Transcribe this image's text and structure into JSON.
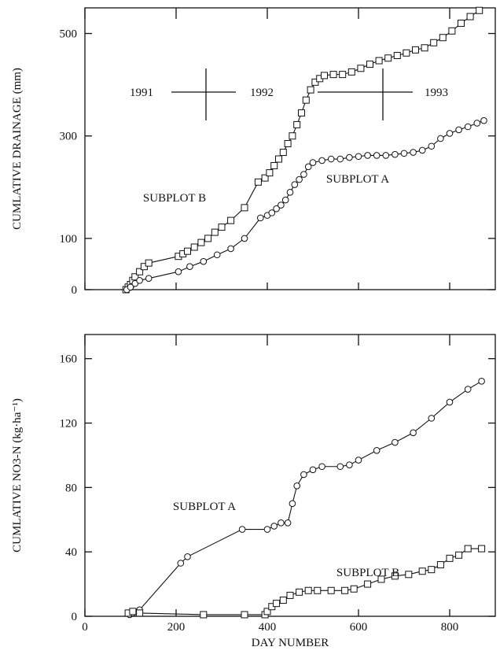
{
  "chart_data": [
    {
      "type": "line",
      "y_label": "CUMLATIVE DRAINAGE  (mm)",
      "annotations": [
        "1991",
        "1992",
        "1993"
      ],
      "xlim": [
        0,
        900
      ],
      "xticks": [
        0,
        200,
        400,
        600,
        800
      ],
      "xtick_labels": false,
      "ylim": [
        0,
        550
      ],
      "yticks": [
        0,
        100,
        300,
        500
      ],
      "series": [
        {
          "name": "SUBPLOT B",
          "marker": "square",
          "color": "#111111",
          "x": [
            90,
            95,
            100,
            105,
            110,
            120,
            130,
            140,
            205,
            215,
            225,
            240,
            255,
            270,
            285,
            300,
            320,
            350,
            380,
            395,
            405,
            415,
            425,
            435,
            445,
            455,
            465,
            475,
            485,
            495,
            505,
            515,
            525,
            545,
            565,
            585,
            605,
            625,
            645,
            665,
            685,
            705,
            725,
            745,
            765,
            785,
            805,
            825,
            845,
            865
          ],
          "values": [
            0,
            5,
            10,
            18,
            25,
            35,
            45,
            52,
            65,
            70,
            75,
            83,
            92,
            100,
            112,
            122,
            135,
            160,
            210,
            218,
            228,
            242,
            255,
            268,
            285,
            300,
            322,
            345,
            370,
            390,
            405,
            412,
            418,
            420,
            420,
            425,
            432,
            440,
            447,
            452,
            457,
            462,
            468,
            472,
            482,
            492,
            505,
            520,
            533,
            545
          ]
        },
        {
          "name": "SUBPLOT A",
          "marker": "circle",
          "color": "#111111",
          "x": [
            92,
            100,
            110,
            120,
            140,
            205,
            230,
            260,
            290,
            320,
            350,
            385,
            400,
            410,
            420,
            430,
            440,
            450,
            460,
            470,
            480,
            490,
            500,
            520,
            540,
            560,
            580,
            600,
            620,
            640,
            660,
            680,
            700,
            720,
            740,
            760,
            780,
            800,
            820,
            840,
            860,
            875
          ],
          "values": [
            0,
            5,
            12,
            18,
            22,
            35,
            45,
            55,
            68,
            80,
            100,
            140,
            145,
            150,
            158,
            165,
            175,
            190,
            205,
            215,
            225,
            240,
            248,
            252,
            255,
            255,
            258,
            260,
            262,
            262,
            262,
            264,
            266,
            268,
            272,
            280,
            295,
            305,
            312,
            318,
            325,
            330
          ]
        }
      ]
    },
    {
      "type": "line",
      "y_label": "CUMLATIVE  NO3-N  (kg·ha⁻¹)",
      "x_label": "DAY NUMBER",
      "xlim": [
        0,
        900
      ],
      "xticks": [
        0,
        200,
        400,
        600,
        800
      ],
      "xtick_labels": true,
      "ylim": [
        0,
        175
      ],
      "yticks": [
        0,
        40,
        80,
        120,
        160
      ],
      "series": [
        {
          "name": "SUBPLOT A",
          "marker": "circle",
          "color": "#111111",
          "x": [
            98,
            105,
            120,
            210,
            225,
            345,
            400,
            415,
            430,
            445,
            455,
            465,
            480,
            500,
            520,
            560,
            580,
            600,
            640,
            680,
            720,
            760,
            800,
            840,
            870
          ],
          "values": [
            1,
            2,
            4,
            33,
            37,
            54,
            54,
            56,
            58,
            58,
            70,
            81,
            88,
            91,
            93,
            93,
            94,
            97,
            103,
            108,
            114,
            123,
            133,
            141,
            146
          ]
        },
        {
          "name": "SUBPLOT B",
          "marker": "square",
          "color": "#111111",
          "x": [
            95,
            105,
            120,
            260,
            350,
            395,
            400,
            410,
            420,
            435,
            450,
            470,
            490,
            510,
            540,
            570,
            590,
            620,
            650,
            680,
            710,
            740,
            760,
            780,
            800,
            820,
            840,
            870
          ],
          "values": [
            2,
            3,
            2,
            1,
            1,
            1,
            3,
            6,
            8,
            10,
            13,
            15,
            16,
            16,
            16,
            16,
            17,
            20,
            23,
            25,
            26,
            28,
            29,
            32,
            36,
            38,
            42,
            42
          ]
        }
      ]
    }
  ]
}
